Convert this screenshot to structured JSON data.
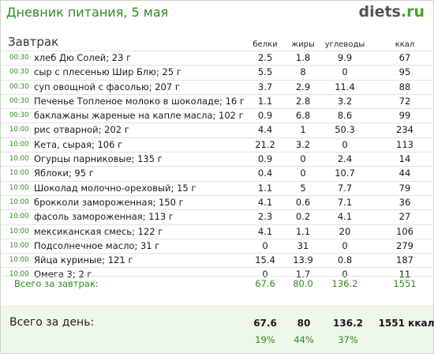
{
  "header": {
    "title": "Дневник питания, 5 мая",
    "logo_main": "diets",
    "logo_tld": ".ru"
  },
  "meal": {
    "title": "Завтрак"
  },
  "columns": {
    "protein": "белки",
    "fat": "жиры",
    "carbs": "углеводы",
    "kcal": "ккал"
  },
  "rows": [
    {
      "time": "00:30",
      "name": "хлеб Дю Солей; 23 г",
      "protein": "2.5",
      "fat": "1.8",
      "carbs": "9.9",
      "kcal": "67"
    },
    {
      "time": "00:30",
      "name": "сыр с плесенью Шир Блю; 25 г",
      "protein": "5.5",
      "fat": "8",
      "carbs": "0",
      "kcal": "95"
    },
    {
      "time": "00:30",
      "name": "суп овощной с фасолью; 207 г",
      "protein": "3.7",
      "fat": "2.9",
      "carbs": "11.4",
      "kcal": "88"
    },
    {
      "time": "00:30",
      "name": "Печенье Топленое молоко в шоколаде; 16 г",
      "protein": "1.1",
      "fat": "2.8",
      "carbs": "3.2",
      "kcal": "72"
    },
    {
      "time": "00:30",
      "name": "баклажаны жареные на капле масла; 102 г",
      "protein": "0.9",
      "fat": "6.8",
      "carbs": "8.6",
      "kcal": "99"
    },
    {
      "time": "10:00",
      "name": "рис отварной; 202 г",
      "protein": "4.4",
      "fat": "1",
      "carbs": "50.3",
      "kcal": "234"
    },
    {
      "time": "10:00",
      "name": "Кета, сырая; 106 г",
      "protein": "21.2",
      "fat": "3.2",
      "carbs": "0",
      "kcal": "113"
    },
    {
      "time": "10:00",
      "name": "Огурцы парниковые; 135 г",
      "protein": "0.9",
      "fat": "0",
      "carbs": "2.4",
      "kcal": "14"
    },
    {
      "time": "10:00",
      "name": "Яблоки; 95 г",
      "protein": "0.4",
      "fat": "0",
      "carbs": "10.7",
      "kcal": "44"
    },
    {
      "time": "10:00",
      "name": "Шоколад молочно-ореховый; 15 г",
      "protein": "1.1",
      "fat": "5",
      "carbs": "7.7",
      "kcal": "79"
    },
    {
      "time": "10:00",
      "name": "брокколи замороженная; 150 г",
      "protein": "4.1",
      "fat": "0.6",
      "carbs": "7.1",
      "kcal": "36"
    },
    {
      "time": "10:00",
      "name": "фасоль замороженная; 113 г",
      "protein": "2.3",
      "fat": "0.2",
      "carbs": "4.1",
      "kcal": "27"
    },
    {
      "time": "10:00",
      "name": "мексиканская смесь; 122 г",
      "protein": "4.1",
      "fat": "1.1",
      "carbs": "20",
      "kcal": "106"
    },
    {
      "time": "10:00",
      "name": "Подсолнечное масло; 31 г",
      "protein": "0",
      "fat": "31",
      "carbs": "0",
      "kcal": "279"
    },
    {
      "time": "10:00",
      "name": "Яйца куриные; 121 г",
      "protein": "15.4",
      "fat": "13.9",
      "carbs": "0.8",
      "kcal": "187"
    },
    {
      "time": "10:00",
      "name": "Омега 3; 2 г",
      "protein": "0",
      "fat": "1.7",
      "carbs": "0",
      "kcal": "11"
    }
  ],
  "subtotal": {
    "label": "Всего за завтрак:",
    "protein": "67.6",
    "fat": "80.0",
    "carbs": "136.2",
    "kcal": "1551"
  },
  "day_total": {
    "label": "Всего за день:",
    "protein": "67.6",
    "fat": "80",
    "carbs": "136.2",
    "kcal": "1551 ккал",
    "protein_pct": "19%",
    "fat_pct": "44%",
    "carbs_pct": "37%"
  }
}
